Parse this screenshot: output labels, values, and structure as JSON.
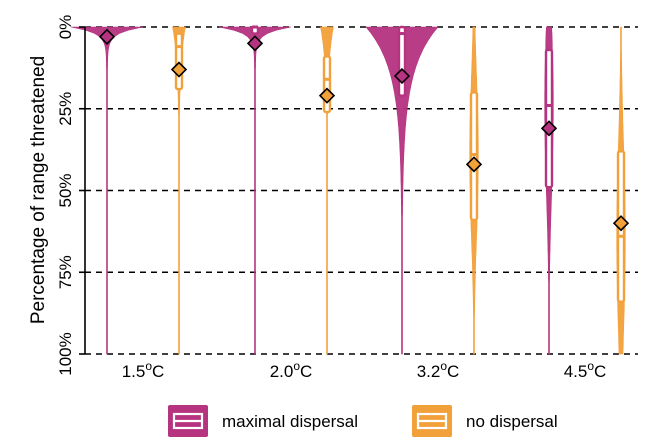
{
  "chart_data": {
    "type": "violin",
    "ylabel": "Percentage of range threatened",
    "y_axis": {
      "min": 0,
      "max": 100,
      "reversed": true,
      "ticks": [
        {
          "value": 0,
          "label": "0%"
        },
        {
          "value": 25,
          "label": "25%"
        },
        {
          "value": 50,
          "label": "50%"
        },
        {
          "value": 75,
          "label": "75%"
        },
        {
          "value": 100,
          "label": "100%"
        }
      ],
      "gridlines": "dashed"
    },
    "categories": [
      {
        "base": "1.5",
        "sup": "o",
        "unit": "C"
      },
      {
        "base": "2.0",
        "sup": "o",
        "unit": "C"
      },
      {
        "base": "3.2",
        "sup": "o",
        "unit": "C"
      },
      {
        "base": "4.5",
        "sup": "o",
        "unit": "C"
      }
    ],
    "series": [
      {
        "name": "maximal dispersal",
        "color": "#B5337F",
        "values": [
          {
            "mean": 3,
            "q1": 0,
            "median": 0,
            "q3": 0,
            "shape": "top-heavy"
          },
          {
            "mean": 5,
            "q1": 0,
            "median": 0,
            "q3": 2,
            "shape": "top-heavy"
          },
          {
            "mean": 15,
            "q1": 0,
            "median": 2,
            "q3": 21,
            "shape": "top-heavy"
          },
          {
            "mean": 31,
            "q1": 7,
            "median": 24,
            "q3": 49,
            "shape": "spread"
          }
        ]
      },
      {
        "name": "no dispersal",
        "color": "#F2A03A",
        "values": [
          {
            "mean": 13,
            "q1": 2,
            "median": 6,
            "q3": 19,
            "shape": "top-heavy"
          },
          {
            "mean": 21,
            "q1": 9,
            "median": 16,
            "q3": 26,
            "shape": "top-heavy"
          },
          {
            "mean": 42,
            "q1": 20,
            "median": 39,
            "q3": 59,
            "shape": "spread"
          },
          {
            "mean": 60,
            "q1": 38,
            "median": 64,
            "q3": 84,
            "shape": "spread"
          }
        ]
      }
    ],
    "legend": {
      "position": "bottom",
      "items": [
        {
          "label": "maximal dispersal",
          "color": "#B5337F"
        },
        {
          "label": "no dispersal",
          "color": "#F2A03A"
        }
      ]
    }
  }
}
